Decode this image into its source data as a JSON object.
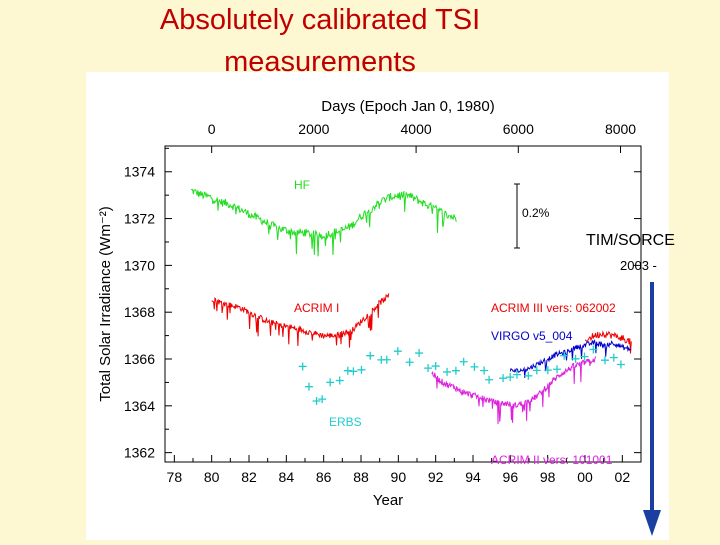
{
  "slide": {
    "title_line1": "Absolutely calibrated TSI",
    "title_line2": "measurements"
  },
  "overlay": {
    "tim_label": "TIM/SORCE",
    "tim_years": "2003 -"
  },
  "colors": {
    "background": "#fdf7d2",
    "title": "#c00000",
    "hf": "#22dd22",
    "acrim1": "#ee0000",
    "acrim3": "#ee0000",
    "virgo": "#0000cc",
    "erbs": "#22cccc",
    "acrim2": "#dd22dd",
    "arrow": "#1a3fa0"
  },
  "chart_data": {
    "type": "line",
    "top_axis": {
      "label": "Days (Epoch Jan 0, 1980)",
      "ticks": [
        "0",
        "2000",
        "4000",
        "6000",
        "8000"
      ]
    },
    "xlabel": "Year",
    "x_tick_labels": [
      "78",
      "80",
      "82",
      "84",
      "86",
      "88",
      "90",
      "92",
      "94",
      "96",
      "98",
      "00",
      "02"
    ],
    "ylabel": "Total Solar Irradiance (Wm⁻²)",
    "y_ticks": [
      "1362",
      "1364",
      "1366",
      "1368",
      "1370",
      "1372",
      "1374"
    ],
    "xlim": [
      1977.5,
      2003
    ],
    "ylim": [
      1361.6,
      1375.1
    ],
    "scale_bar_label": "0.2%",
    "series": [
      {
        "name": "HF",
        "label": "HF",
        "points": [
          [
            1978.9,
            1373.2
          ],
          [
            1979.5,
            1373.0
          ],
          [
            1980,
            1372.9
          ],
          [
            1980.5,
            1372.7
          ],
          [
            1981,
            1372.6
          ],
          [
            1981.5,
            1372.4
          ],
          [
            1982,
            1372.2
          ],
          [
            1982.5,
            1372.0
          ],
          [
            1983,
            1371.8
          ],
          [
            1983.5,
            1371.6
          ],
          [
            1984,
            1371.5
          ],
          [
            1984.5,
            1371.4
          ],
          [
            1985,
            1371.4
          ],
          [
            1985.5,
            1371.3
          ],
          [
            1986,
            1371.3
          ],
          [
            1986.5,
            1371.4
          ],
          [
            1987,
            1371.5
          ],
          [
            1987.5,
            1371.7
          ],
          [
            1988,
            1372.1
          ],
          [
            1988.5,
            1372.4
          ],
          [
            1989,
            1372.7
          ],
          [
            1989.5,
            1372.9
          ],
          [
            1990,
            1373.0
          ],
          [
            1990.5,
            1373.0
          ],
          [
            1991,
            1372.8
          ],
          [
            1991.5,
            1372.6
          ],
          [
            1992,
            1372.4
          ],
          [
            1992.5,
            1372.2
          ],
          [
            1993.1,
            1372.0
          ]
        ]
      },
      {
        "name": "ACRIM I",
        "label": "ACRIM I",
        "points": [
          [
            1980,
            1368.6
          ],
          [
            1980.5,
            1368.4
          ],
          [
            1981,
            1368.3
          ],
          [
            1981.5,
            1368.2
          ],
          [
            1982,
            1368.0
          ],
          [
            1982.5,
            1367.8
          ],
          [
            1983,
            1367.6
          ],
          [
            1983.5,
            1367.5
          ],
          [
            1984,
            1367.4
          ],
          [
            1984.5,
            1367.3
          ],
          [
            1985,
            1367.2
          ],
          [
            1985.5,
            1367.1
          ],
          [
            1986,
            1367.0
          ],
          [
            1986.5,
            1367.0
          ],
          [
            1987,
            1367.1
          ],
          [
            1987.5,
            1367.2
          ],
          [
            1988,
            1367.6
          ],
          [
            1988.5,
            1368.0
          ],
          [
            1989,
            1368.4
          ],
          [
            1989.5,
            1368.7
          ]
        ]
      },
      {
        "name": "ACRIM III vers: 062002",
        "label": "ACRIM III vers: 062002",
        "points": [
          [
            2000,
            1366.8
          ],
          [
            2000.5,
            1367.0
          ],
          [
            2001,
            1367.1
          ],
          [
            2001.5,
            1367.0
          ],
          [
            2002,
            1366.9
          ],
          [
            2002.5,
            1366.7
          ]
        ]
      },
      {
        "name": "VIRGO v5_004",
        "label": "VIRGO v5_004",
        "points": [
          [
            1996,
            1365.5
          ],
          [
            1996.5,
            1365.5
          ],
          [
            1997,
            1365.6
          ],
          [
            1997.5,
            1365.8
          ],
          [
            1998,
            1366.0
          ],
          [
            1998.5,
            1366.2
          ],
          [
            1999,
            1366.3
          ],
          [
            1999.5,
            1366.5
          ],
          [
            2000,
            1366.6
          ],
          [
            2000.5,
            1366.7
          ],
          [
            2001,
            1366.6
          ],
          [
            2001.5,
            1366.7
          ],
          [
            2002,
            1366.5
          ],
          [
            2002.5,
            1366.4
          ]
        ]
      },
      {
        "name": "ERBS",
        "label": "ERBS",
        "points": [
          [
            1984.8,
            1365.5
          ],
          [
            1985.2,
            1364.8
          ],
          [
            1985.6,
            1364.4
          ],
          [
            1986,
            1364.5
          ],
          [
            1986.4,
            1364.8
          ],
          [
            1986.8,
            1365.0
          ],
          [
            1987.2,
            1365.3
          ],
          [
            1987.6,
            1365.5
          ],
          [
            1988,
            1365.7
          ],
          [
            1988.5,
            1365.9
          ],
          [
            1989,
            1366.0
          ],
          [
            1989.5,
            1366.1
          ],
          [
            1990,
            1366.1
          ],
          [
            1990.5,
            1366.0
          ],
          [
            1991,
            1366.0
          ],
          [
            1991.5,
            1365.9
          ],
          [
            1992,
            1365.8
          ],
          [
            1992.5,
            1365.7
          ],
          [
            1993,
            1365.6
          ],
          [
            1993.5,
            1365.6
          ],
          [
            1994,
            1365.5
          ],
          [
            1994.5,
            1365.5
          ],
          [
            1995,
            1365.4
          ],
          [
            1995.5,
            1365.3
          ],
          [
            1996,
            1365.2
          ],
          [
            1996.5,
            1365.2
          ],
          [
            1997,
            1365.3
          ],
          [
            1997.5,
            1365.4
          ],
          [
            1998,
            1365.6
          ],
          [
            1998.5,
            1365.8
          ],
          [
            1999,
            1366.0
          ],
          [
            1999.5,
            1366.0
          ],
          [
            2000,
            1366.1
          ],
          [
            2000.5,
            1366.2
          ],
          [
            2001,
            1366.2
          ],
          [
            2001.5,
            1366.1
          ],
          [
            2002,
            1366.0
          ]
        ]
      },
      {
        "name": "ACRIM II vers: 101001",
        "label": "ACRIM II vers: 101001",
        "points": [
          [
            1991.8,
            1365.4
          ],
          [
            1992.2,
            1365.1
          ],
          [
            1992.6,
            1364.9
          ],
          [
            1993,
            1364.8
          ],
          [
            1993.4,
            1364.6
          ],
          [
            1993.8,
            1364.5
          ],
          [
            1994.2,
            1364.4
          ],
          [
            1994.6,
            1364.3
          ],
          [
            1995,
            1364.2
          ],
          [
            1995.4,
            1364.1
          ],
          [
            1995.8,
            1364.1
          ],
          [
            1996.2,
            1364.0
          ],
          [
            1996.6,
            1364.1
          ],
          [
            1997,
            1364.2
          ],
          [
            1997.4,
            1364.4
          ],
          [
            1997.8,
            1364.7
          ],
          [
            1998.2,
            1365.0
          ],
          [
            1998.6,
            1365.3
          ],
          [
            1999,
            1365.5
          ],
          [
            1999.4,
            1365.7
          ],
          [
            1999.8,
            1365.8
          ],
          [
            2000.2,
            1365.9
          ],
          [
            2000.6,
            1366.0
          ]
        ]
      }
    ]
  }
}
